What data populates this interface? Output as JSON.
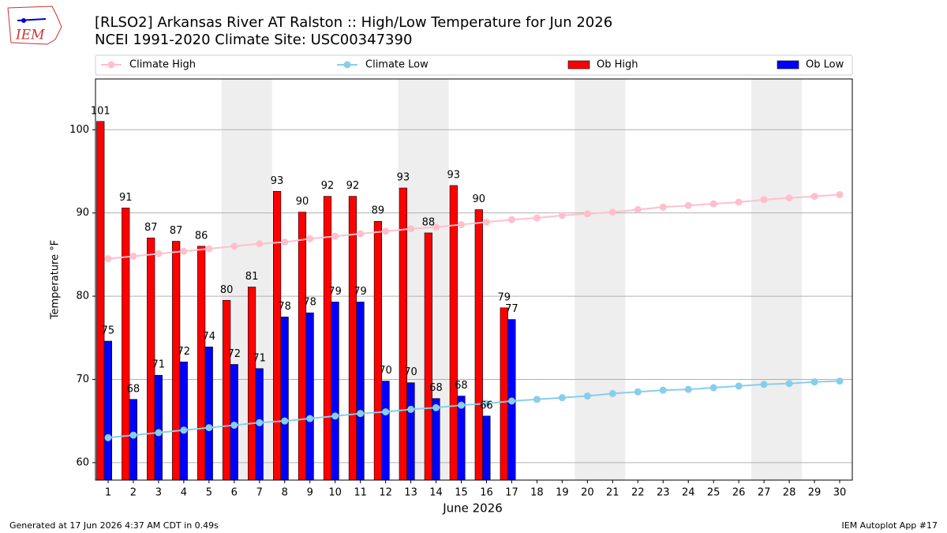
{
  "chart_data": {
    "type": "bar",
    "title": "[RLSO2] Arkansas River  AT Ralston :: High/Low Temperature for Jun 2026",
    "subtitle": "NCEI 1991-2020 Climate Site: USC00347390",
    "logo": "IEM",
    "xlabel": "June 2026",
    "ylabel": "Temperature °F",
    "footer_left": "Generated at 17 Jun 2026 4:37 AM CDT in 0.49s",
    "footer_right": "IEM Autoplot App #17",
    "x": [
      1,
      2,
      3,
      4,
      5,
      6,
      7,
      8,
      9,
      10,
      11,
      12,
      13,
      14,
      15,
      16,
      17,
      18,
      19,
      20,
      21,
      22,
      23,
      24,
      25,
      26,
      27,
      28,
      29,
      30
    ],
    "xlim": [
      0.5,
      30.5
    ],
    "xticks": [
      1,
      2,
      3,
      4,
      5,
      6,
      7,
      8,
      9,
      10,
      11,
      12,
      13,
      14,
      15,
      16,
      17,
      18,
      19,
      20,
      21,
      22,
      23,
      24,
      25,
      26,
      27,
      28,
      29,
      30
    ],
    "ylim": [
      57.9,
      106.1
    ],
    "yticks": [
      60,
      70,
      80,
      90,
      100
    ],
    "grid": true,
    "legend": "top",
    "series": [
      {
        "name": "Climate High",
        "type": "line",
        "color": "#ffc0cb",
        "values": [
          84.5,
          84.8,
          85.1,
          85.4,
          85.7,
          86.0,
          86.3,
          86.5,
          86.9,
          87.2,
          87.5,
          87.8,
          88.1,
          88.3,
          88.6,
          88.9,
          89.2,
          89.4,
          89.7,
          89.9,
          90.1,
          90.4,
          90.7,
          90.9,
          91.1,
          91.3,
          91.6,
          91.8,
          92.0,
          92.2
        ]
      },
      {
        "name": "Climate Low",
        "type": "line",
        "color": "#87ceeb",
        "values": [
          63.0,
          63.3,
          63.6,
          63.9,
          64.2,
          64.5,
          64.8,
          65.0,
          65.3,
          65.6,
          65.9,
          66.1,
          66.4,
          66.6,
          66.9,
          67.1,
          67.4,
          67.6,
          67.8,
          68.0,
          68.3,
          68.5,
          68.7,
          68.8,
          69.0,
          69.2,
          69.4,
          69.5,
          69.7,
          69.8
        ]
      },
      {
        "name": "Ob High",
        "type": "bar",
        "color": "#ff0000",
        "values": [
          101,
          90.6,
          87,
          86.6,
          86,
          79.5,
          81.1,
          92.6,
          90.1,
          92,
          92,
          89,
          93,
          87.6,
          93.3,
          90.4,
          78.6,
          null,
          null,
          null,
          null,
          null,
          null,
          null,
          null,
          null,
          null,
          null,
          null,
          null
        ],
        "value_labels": [
          "101",
          "91",
          "87",
          "87",
          "86",
          "80",
          "81",
          "93",
          "90",
          "92",
          "92",
          "89",
          "93",
          "88",
          "93",
          "90",
          "79",
          null,
          null,
          null,
          null,
          null,
          null,
          null,
          null,
          null,
          null,
          null,
          null,
          null
        ]
      },
      {
        "name": "Ob Low",
        "type": "bar",
        "color": "#0000ff",
        "values": [
          74.6,
          67.6,
          70.5,
          72.1,
          73.9,
          71.8,
          71.3,
          77.5,
          78,
          79.3,
          79.3,
          69.8,
          69.6,
          67.7,
          68,
          65.6,
          77.2,
          null,
          null,
          null,
          null,
          null,
          null,
          null,
          null,
          null,
          null,
          null,
          null,
          null
        ],
        "value_labels": [
          "75",
          "68",
          "71",
          "72",
          "74",
          "72",
          "71",
          "78",
          "78",
          "79",
          "79",
          "70",
          "70",
          "68",
          "68",
          "66",
          "77",
          null,
          null,
          null,
          null,
          null,
          null,
          null,
          null,
          null,
          null,
          null,
          null,
          null
        ]
      }
    ]
  }
}
